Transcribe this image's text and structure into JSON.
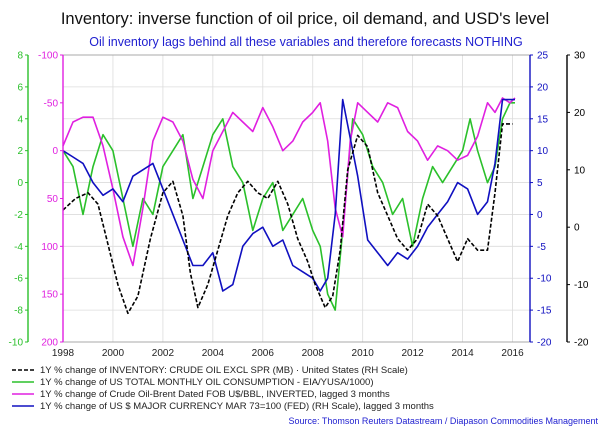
{
  "chart_data": {
    "type": "line",
    "title": "Inventory: inverse function of oil price, oil demand, and USD's level",
    "subtitle": "Oil inventory lags behind all these variables and therefore forecasts NOTHING",
    "source": "Source: Thomson Reuters Datastream / Diapason Commodities Management",
    "grid": true,
    "legend_position": "bottom-left",
    "x_ticks": [
      "1998",
      "2000",
      "2002",
      "2004",
      "2006",
      "2008",
      "2010",
      "2012",
      "2014",
      "2016"
    ],
    "xlim": [
      1998,
      2016.7
    ],
    "axes": [
      {
        "id": "green_left",
        "side": "left",
        "color": "#2bc02b",
        "ylim": [
          -10,
          8
        ],
        "ticks": [
          "8",
          "6",
          "4",
          "2",
          "0",
          "-2",
          "-4",
          "-6",
          "-8",
          "-10"
        ]
      },
      {
        "id": "magenta_left",
        "side": "left",
        "color": "#e020e0",
        "inverted": true,
        "ylim": [
          -100,
          200
        ],
        "ticks": [
          "-100",
          "-50",
          "0",
          "50",
          "100",
          "150",
          "200"
        ]
      },
      {
        "id": "blue_right",
        "side": "right",
        "color": "#1010c0",
        "ylim": [
          -20,
          25
        ],
        "ticks": [
          "25",
          "20",
          "15",
          "10",
          "5",
          "0",
          "-5",
          "-10",
          "-15",
          "-20"
        ]
      },
      {
        "id": "black_right",
        "side": "right",
        "color": "#000000",
        "ylim": [
          -20,
          30
        ],
        "ticks": [
          "30",
          "20",
          "10",
          "0",
          "-10",
          "-20"
        ]
      }
    ],
    "series": [
      {
        "name": "1Y % change of INVENTORY: CRUDE OIL EXCL SPR (MB) · United States (RH Scale)",
        "axis": "black_right",
        "color": "#000000",
        "dash": true,
        "x": [
          1998.0,
          1998.5,
          1999.0,
          1999.4,
          1999.8,
          2000.2,
          2000.6,
          2001.0,
          2001.5,
          2002.0,
          2002.4,
          2002.8,
          2003.1,
          2003.4,
          2003.8,
          2004.2,
          2004.6,
          2005.0,
          2005.4,
          2005.8,
          2006.2,
          2006.6,
          2007.0,
          2007.4,
          2007.8,
          2008.1,
          2008.5,
          2008.8,
          2009.1,
          2009.4,
          2009.8,
          2010.2,
          2010.6,
          2011.0,
          2011.4,
          2011.8,
          2012.2,
          2012.6,
          2013.0,
          2013.4,
          2013.8,
          2014.2,
          2014.6,
          2015.0,
          2015.3,
          2015.6,
          2016.0
        ],
        "values": [
          3,
          5,
          6,
          4,
          -3,
          -10,
          -15,
          -12,
          -2,
          6,
          8,
          2,
          -8,
          -14,
          -10,
          -4,
          2,
          6,
          8,
          6,
          5,
          8,
          4,
          -2,
          -6,
          -10,
          -14,
          -12,
          -4,
          10,
          16,
          14,
          6,
          2,
          -2,
          -4,
          -2,
          4,
          2,
          -2,
          -6,
          -2,
          -4,
          -4,
          6,
          18,
          18
        ]
      },
      {
        "name": "1Y % change of US TOTAL MONTHLY OIL CONSUMPTION - EIA/YUSA/1000)",
        "axis": "green_left",
        "color": "#2bc02b",
        "x": [
          1998.0,
          1998.4,
          1998.8,
          1999.2,
          1999.6,
          2000.0,
          2000.4,
          2000.8,
          2001.2,
          2001.6,
          2002.0,
          2002.4,
          2002.8,
          2003.2,
          2003.6,
          2004.0,
          2004.4,
          2004.8,
          2005.2,
          2005.6,
          2006.0,
          2006.4,
          2006.8,
          2007.2,
          2007.6,
          2008.0,
          2008.3,
          2008.6,
          2008.9,
          2009.2,
          2009.6,
          2010.0,
          2010.4,
          2010.8,
          2011.2,
          2011.6,
          2012.0,
          2012.4,
          2012.8,
          2013.2,
          2013.6,
          2014.0,
          2014.3,
          2014.6,
          2015.0,
          2015.3,
          2015.6,
          2015.9,
          2016.1
        ],
        "values": [
          2,
          1,
          -2,
          1,
          3,
          2,
          -1,
          -4,
          -1,
          -2,
          1,
          2,
          3,
          -1,
          1,
          3,
          4,
          1,
          0,
          -3,
          -1,
          0,
          -3,
          -2,
          -1,
          -3,
          -4,
          -7,
          -8,
          -3,
          4,
          3,
          1,
          0,
          -2,
          -1,
          -4,
          -1,
          1,
          0,
          1,
          2,
          4,
          2,
          0,
          1,
          4,
          5,
          5
        ]
      },
      {
        "name": "1Y % change of Crude Oil-Brent Dated FOB U$/BBL, INVERTED, lagged 3 months",
        "axis": "magenta_left",
        "color": "#e020e0",
        "x": [
          1998.0,
          1998.4,
          1998.8,
          1999.2,
          1999.6,
          2000.0,
          2000.4,
          2000.8,
          2001.2,
          2001.6,
          2002.0,
          2002.4,
          2002.8,
          2003.2,
          2003.6,
          2004.0,
          2004.4,
          2004.8,
          2005.2,
          2005.6,
          2006.0,
          2006.4,
          2006.8,
          2007.2,
          2007.6,
          2008.0,
          2008.3,
          2008.6,
          2008.9,
          2009.2,
          2009.5,
          2009.8,
          2010.2,
          2010.6,
          2011.0,
          2011.4,
          2011.8,
          2012.2,
          2012.6,
          2013.0,
          2013.4,
          2013.8,
          2014.2,
          2014.6,
          2015.0,
          2015.3,
          2015.6,
          2015.9,
          2016.1
        ],
        "values": [
          -5,
          -30,
          -35,
          -35,
          -5,
          40,
          90,
          120,
          60,
          -10,
          -35,
          -30,
          -10,
          30,
          50,
          0,
          -20,
          -40,
          -30,
          -20,
          -45,
          -25,
          0,
          -10,
          -30,
          -40,
          -50,
          -10,
          60,
          90,
          -10,
          -50,
          -40,
          -30,
          -50,
          -45,
          -20,
          -10,
          10,
          -5,
          0,
          10,
          5,
          -15,
          -50,
          -40,
          -55,
          -50,
          -55
        ]
      },
      {
        "name": "1Y % change of US $ MAJOR CURRENCY MAR 73=100 (FED) (RH Scale), lagged 3 months",
        "axis": "blue_right",
        "color": "#1010c0",
        "x": [
          1998.0,
          1998.4,
          1998.8,
          1999.2,
          1999.6,
          2000.0,
          2000.4,
          2000.8,
          2001.2,
          2001.6,
          2002.0,
          2002.4,
          2002.8,
          2003.2,
          2003.6,
          2004.0,
          2004.4,
          2004.8,
          2005.2,
          2005.6,
          2006.0,
          2006.4,
          2006.8,
          2007.2,
          2007.6,
          2008.0,
          2008.3,
          2008.6,
          2008.9,
          2009.2,
          2009.5,
          2009.8,
          2010.2,
          2010.6,
          2011.0,
          2011.4,
          2011.8,
          2012.2,
          2012.6,
          2013.0,
          2013.4,
          2013.8,
          2014.2,
          2014.6,
          2015.0,
          2015.3,
          2015.6,
          2015.9,
          2016.1
        ],
        "values": [
          10,
          9,
          8,
          5,
          3,
          4,
          2,
          6,
          7,
          8,
          4,
          0,
          -4,
          -8,
          -8,
          -6,
          -12,
          -11,
          -5,
          -3,
          -2,
          -5,
          -4,
          -8,
          -9,
          -10,
          -12,
          -10,
          0,
          18,
          12,
          6,
          -4,
          -6,
          -8,
          -6,
          -7,
          -5,
          -2,
          0,
          2,
          5,
          4,
          0,
          2,
          8,
          18,
          18,
          18
        ]
      }
    ]
  }
}
